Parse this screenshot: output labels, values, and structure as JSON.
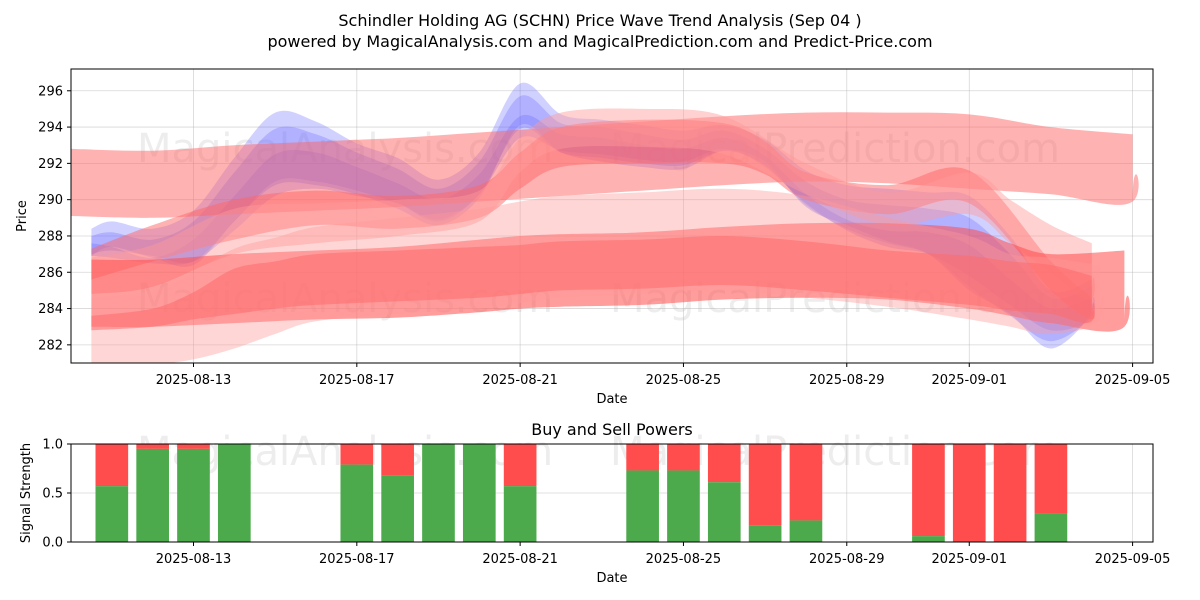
{
  "header": {
    "title": "Schindler Holding AG (SCHN) Price Wave Trend Analysis (Sep 04 )",
    "subtitle": "powered by MagicalAnalysis.com and MagicalPrediction.com and Predict-Price.com"
  },
  "watermarks": [
    "MagicalAnalysis.com",
    "MagicalPrediction.com"
  ],
  "chart_data": [
    {
      "type": "area",
      "title": "",
      "xlabel": "Date",
      "ylabel": "Price",
      "xlim": [
        -1.0,
        25.5
      ],
      "ylim": [
        281.0,
        297.2
      ],
      "x_ticks": [
        {
          "x": 2,
          "label": "2025-08-13"
        },
        {
          "x": 6,
          "label": "2025-08-17"
        },
        {
          "x": 10,
          "label": "2025-08-21"
        },
        {
          "x": 14,
          "label": "2025-08-25"
        },
        {
          "x": 18,
          "label": "2025-08-29"
        },
        {
          "x": 21,
          "label": "2025-09-01"
        },
        {
          "x": 25,
          "label": "2025-09-05"
        }
      ],
      "y_ticks": [
        282,
        284,
        286,
        288,
        290,
        292,
        294,
        296
      ],
      "grid": true,
      "series": [
        {
          "name": "blue-wave-1",
          "color": "#6666ff",
          "opacity": 0.3,
          "x": [
            -0.5,
            0,
            1,
            2,
            3,
            4,
            5,
            6,
            7,
            8,
            9,
            10,
            11,
            12,
            13,
            14,
            15,
            16,
            17,
            18,
            19,
            20,
            21,
            22,
            23,
            24
          ],
          "upper": [
            288.4,
            288.8,
            288.4,
            289.4,
            292.3,
            294.8,
            294.3,
            293.1,
            292.3,
            291.1,
            292.6,
            296.4,
            294.7,
            294.4,
            294.1,
            293.8,
            294.1,
            293.3,
            291.6,
            290.8,
            290.6,
            290.4,
            290.2,
            288.0,
            285.0,
            285.6
          ],
          "lower": [
            286.9,
            287.4,
            286.8,
            286.4,
            288.8,
            290.8,
            290.8,
            290.3,
            289.5,
            288.6,
            290.1,
            294.1,
            292.6,
            292.1,
            291.8,
            291.7,
            292.7,
            292.1,
            289.6,
            288.6,
            287.7,
            287.0,
            285.0,
            283.7,
            281.8,
            283.8
          ]
        },
        {
          "name": "blue-wave-2",
          "color": "#6666ff",
          "opacity": 0.3,
          "x": [
            -0.5,
            0,
            1,
            2,
            3,
            4,
            5,
            6,
            7,
            8,
            9,
            10,
            11,
            12,
            13,
            14,
            15,
            16,
            17,
            18,
            19,
            20,
            21,
            22,
            23,
            24
          ],
          "upper": [
            288.0,
            288.2,
            287.8,
            288.8,
            291.5,
            293.9,
            293.6,
            292.6,
            291.7,
            290.6,
            292.1,
            295.7,
            294.2,
            294.0,
            293.6,
            293.3,
            293.8,
            292.8,
            291.0,
            290.0,
            289.7,
            289.5,
            289.0,
            287.0,
            284.6,
            285.2
          ],
          "lower": [
            287.0,
            287.2,
            286.9,
            286.6,
            288.8,
            291.0,
            291.0,
            290.5,
            289.8,
            288.8,
            290.3,
            293.9,
            292.6,
            292.3,
            292.0,
            291.9,
            292.7,
            291.9,
            289.7,
            288.4,
            287.6,
            287.0,
            285.2,
            283.6,
            282.2,
            283.6
          ]
        },
        {
          "name": "blue-wave-3",
          "color": "#6666ff",
          "opacity": 0.3,
          "x": [
            -0.5,
            0,
            1,
            2,
            3,
            4,
            5,
            6,
            7,
            8,
            9,
            10,
            11,
            12,
            13,
            14,
            15,
            16,
            17,
            18,
            19,
            20,
            21,
            22,
            23,
            24
          ],
          "upper": [
            287.6,
            287.4,
            286.8,
            287.8,
            290.2,
            292.5,
            292.6,
            291.8,
            290.9,
            290.0,
            291.4,
            294.6,
            293.6,
            293.4,
            293.0,
            292.8,
            293.4,
            292.4,
            290.3,
            288.9,
            288.3,
            288.2,
            287.5,
            285.6,
            284.0,
            284.6
          ],
          "lower": [
            286.9,
            286.8,
            286.5,
            286.6,
            288.3,
            290.2,
            290.6,
            290.2,
            289.8,
            288.9,
            290.3,
            293.4,
            292.7,
            292.5,
            292.2,
            292.1,
            292.8,
            291.8,
            289.8,
            288.3,
            287.4,
            287.0,
            285.8,
            284.2,
            282.8,
            283.4
          ]
        },
        {
          "name": "red-wave-long",
          "color": "#ff6666",
          "opacity": 0.5,
          "x": [
            -1,
            1,
            3,
            5,
            7,
            9,
            11,
            13,
            15,
            17,
            19,
            21,
            23,
            25
          ],
          "upper": [
            292.8,
            292.7,
            293.0,
            293.2,
            293.4,
            293.7,
            294.0,
            294.3,
            294.6,
            294.8,
            294.8,
            294.7,
            294.0,
            293.6
          ],
          "lower": [
            289.1,
            289.0,
            289.2,
            289.4,
            289.6,
            289.9,
            290.2,
            290.5,
            290.8,
            291.0,
            290.9,
            290.6,
            290.3,
            289.9
          ]
        },
        {
          "name": "red-wave-mid",
          "color": "#ff6666",
          "opacity": 0.5,
          "x": [
            -0.5,
            1,
            3,
            5,
            7,
            9,
            10,
            11,
            13,
            15,
            16,
            17,
            19,
            21,
            23,
            24
          ],
          "upper": [
            287.3,
            288.6,
            290.0,
            290.5,
            290.2,
            290.8,
            292.6,
            294.0,
            294.4,
            294.2,
            293.2,
            291.5,
            290.8,
            291.6,
            286.6,
            284.6
          ],
          "lower": [
            285.6,
            286.6,
            287.8,
            288.6,
            288.4,
            289.0,
            290.6,
            291.8,
            292.0,
            292.0,
            291.4,
            290.0,
            289.2,
            289.8,
            285.0,
            283.4
          ]
        },
        {
          "name": "red-wave-high",
          "color": "#ff9999",
          "opacity": 0.45,
          "x": [
            -0.5,
            1,
            3,
            5,
            7,
            9,
            10,
            11,
            13,
            15,
            17,
            19,
            21,
            22,
            23,
            24
          ],
          "upper": [
            286.8,
            287.5,
            289.5,
            289.8,
            290.0,
            290.5,
            293.4,
            294.8,
            295.0,
            294.6,
            292.0,
            290.4,
            291.5,
            290.0,
            288.6,
            287.6
          ],
          "lower": [
            284.8,
            285.2,
            287.0,
            287.6,
            288.0,
            288.8,
            291.5,
            292.8,
            292.9,
            292.5,
            290.3,
            288.6,
            289.2,
            287.6,
            286.0,
            284.5
          ]
        },
        {
          "name": "red-wave-base",
          "color": "#ff4d4d",
          "opacity": 0.55,
          "x": [
            -0.5,
            1,
            3,
            5,
            7,
            9,
            10,
            11,
            13,
            15,
            17,
            19,
            21,
            22,
            23,
            24.8
          ],
          "upper": [
            286.7,
            286.7,
            287.0,
            287.2,
            287.4,
            287.8,
            288.0,
            288.1,
            288.2,
            288.5,
            288.7,
            288.7,
            288.4,
            287.6,
            287.0,
            287.2
          ],
          "lower": [
            283.0,
            283.0,
            283.2,
            283.4,
            283.5,
            283.8,
            284.0,
            284.1,
            284.2,
            284.5,
            284.6,
            284.5,
            284.0,
            283.6,
            283.2,
            283.0
          ]
        },
        {
          "name": "red-wave-rise",
          "color": "#ff4d4d",
          "opacity": 0.55,
          "x": [
            -0.5,
            1,
            2,
            3,
            4,
            5,
            7,
            9,
            10,
            11,
            13,
            15,
            17,
            19,
            21,
            22,
            23,
            24
          ],
          "upper": [
            283.6,
            284.0,
            284.9,
            286.2,
            286.6,
            287.0,
            287.2,
            287.4,
            287.5,
            287.7,
            287.8,
            288.0,
            287.7,
            287.2,
            286.9,
            286.6,
            286.4,
            285.8
          ],
          "lower": [
            282.8,
            283.0,
            283.4,
            283.7,
            284.0,
            284.2,
            284.4,
            284.6,
            284.8,
            285.0,
            285.1,
            285.3,
            285.0,
            284.6,
            284.2,
            283.9,
            283.7,
            283.3
          ]
        },
        {
          "name": "red-wave-fan",
          "color": "#ff9999",
          "opacity": 0.4,
          "x": [
            -0.5,
            1,
            2,
            3,
            4,
            5,
            7,
            9,
            10,
            11,
            13,
            15,
            17,
            19,
            21,
            22,
            23,
            24.2
          ],
          "upper": [
            284.6,
            285.0,
            286.0,
            287.3,
            287.9,
            288.5,
            289.0,
            289.5,
            289.9,
            290.2,
            290.4,
            290.6,
            290.2,
            289.0,
            288.0,
            287.0,
            286.8,
            286.4
          ],
          "lower": [
            280.6,
            280.9,
            281.2,
            281.8,
            282.6,
            283.3,
            283.7,
            284.0,
            284.3,
            284.6,
            284.8,
            285.0,
            284.6,
            284.1,
            283.4,
            283.0,
            282.6,
            283.4
          ]
        }
      ]
    },
    {
      "type": "bar",
      "title": "Buy and Sell Powers",
      "xlabel": "Date",
      "ylabel": "Signal Strength",
      "xlim": [
        -1.0,
        25.5
      ],
      "ylim": [
        0,
        1.0
      ],
      "y_ticks": [
        0.0,
        0.5,
        1.0
      ],
      "x_ticks": [
        {
          "x": 2,
          "label": "2025-08-13"
        },
        {
          "x": 6,
          "label": "2025-08-17"
        },
        {
          "x": 10,
          "label": "2025-08-21"
        },
        {
          "x": 14,
          "label": "2025-08-25"
        },
        {
          "x": 18,
          "label": "2025-08-29"
        },
        {
          "x": 21,
          "label": "2025-09-01"
        },
        {
          "x": 25,
          "label": "2025-09-05"
        }
      ],
      "colors": {
        "buy": "#4caa4c",
        "sell": "#ff4d4d"
      },
      "bars": [
        {
          "x": 0,
          "buy": 0.57
        },
        {
          "x": 1,
          "buy": 0.95
        },
        {
          "x": 2,
          "buy": 0.95
        },
        {
          "x": 3,
          "buy": 1.0
        },
        {
          "x": 6,
          "buy": 0.79
        },
        {
          "x": 7,
          "buy": 0.68
        },
        {
          "x": 8,
          "buy": 1.0
        },
        {
          "x": 9,
          "buy": 1.0
        },
        {
          "x": 10,
          "buy": 0.57
        },
        {
          "x": 13,
          "buy": 0.73
        },
        {
          "x": 14,
          "buy": 0.73
        },
        {
          "x": 15,
          "buy": 0.61
        },
        {
          "x": 16,
          "buy": 0.17
        },
        {
          "x": 17,
          "buy": 0.22
        },
        {
          "x": 20,
          "buy": 0.06
        },
        {
          "x": 21,
          "buy": 0.0
        },
        {
          "x": 22,
          "buy": 0.0
        },
        {
          "x": 23,
          "buy": 0.29
        }
      ]
    }
  ]
}
